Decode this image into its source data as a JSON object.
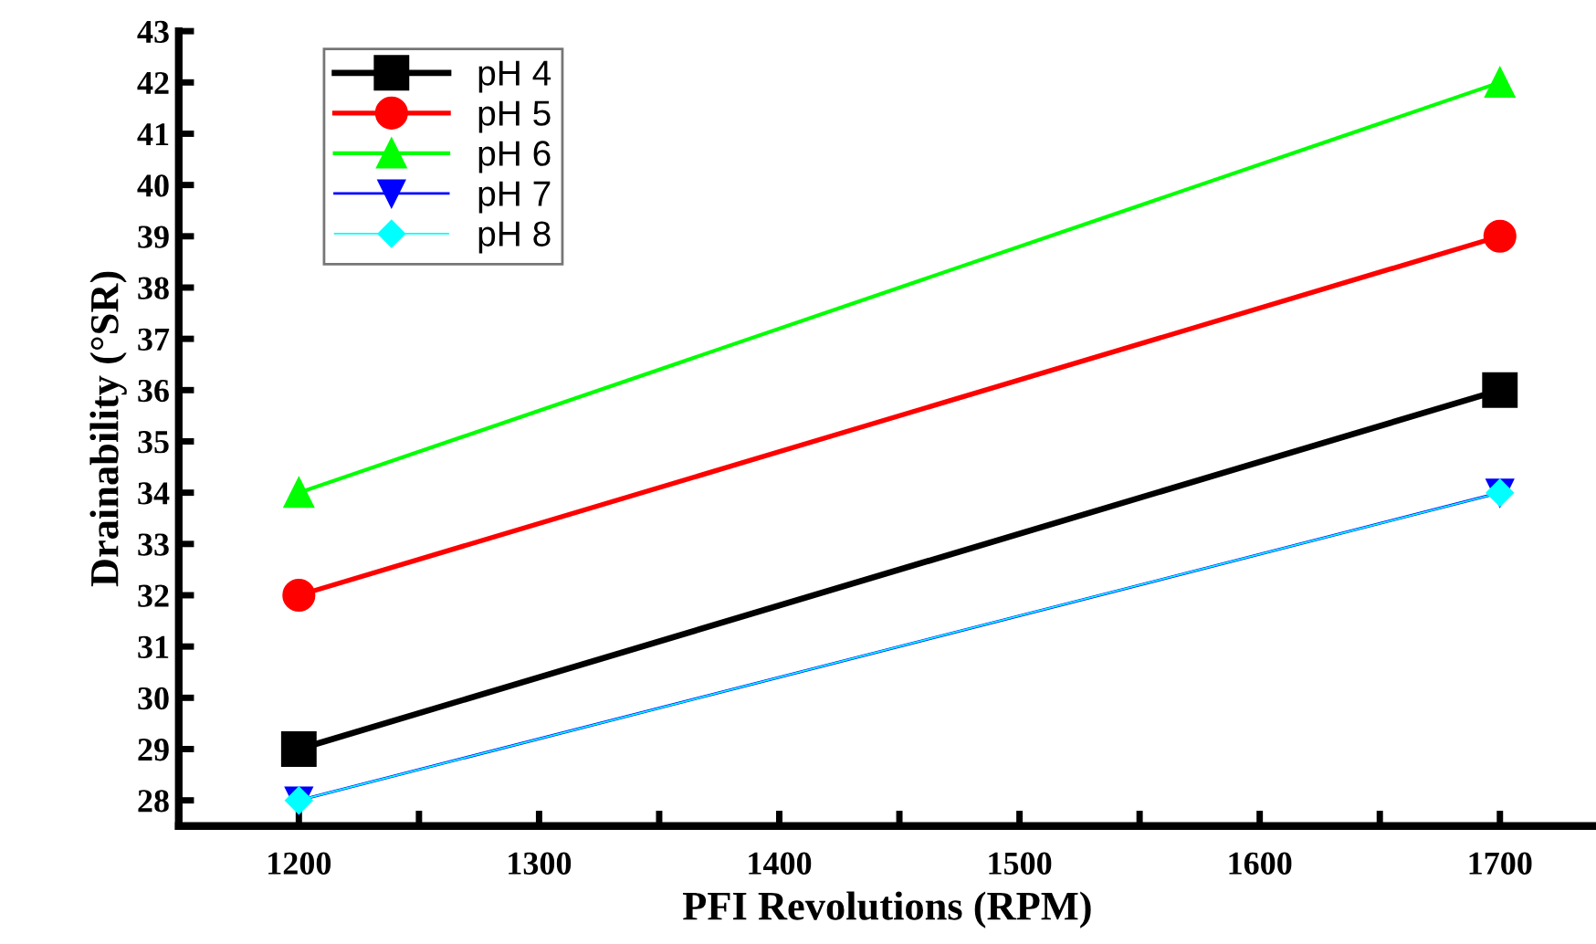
{
  "chart_data": {
    "type": "line",
    "xlabel": "PFI Revolutions (RPM)",
    "ylabel": "Drainability (°SR)",
    "x": [
      1200,
      1700
    ],
    "series": [
      {
        "name": "pH 4",
        "color": "#000000",
        "marker": "square",
        "values": [
          29,
          36
        ]
      },
      {
        "name": "pH 5",
        "color": "#ff0000",
        "marker": "circle",
        "values": [
          32,
          39
        ]
      },
      {
        "name": "pH 6",
        "color": "#00ff00",
        "marker": "triangle",
        "values": [
          34,
          42
        ]
      },
      {
        "name": "pH 7",
        "color": "#0000ff",
        "marker": "triangle_down",
        "values": [
          28,
          34
        ]
      },
      {
        "name": "pH 8",
        "color": "#00ffff",
        "marker": "diamond",
        "values": [
          28,
          34
        ]
      }
    ],
    "xlim": [
      1150,
      1740
    ],
    "ylim": [
      27.5,
      43
    ],
    "xticks": [
      1200,
      {
        "value": 1250,
        "label": null
      },
      1300,
      {
        "value": 1350,
        "label": null
      },
      1400,
      {
        "value": 1450,
        "label": null
      },
      1500,
      {
        "value": 1550,
        "label": null
      },
      1600,
      {
        "value": 1650,
        "label": null
      },
      1700
    ],
    "yticks": [
      28,
      29,
      30,
      31,
      32,
      33,
      34,
      35,
      36,
      37,
      38,
      39,
      40,
      41,
      42,
      43
    ],
    "grid": false,
    "legend": "top left",
    "line_style": "solid"
  }
}
